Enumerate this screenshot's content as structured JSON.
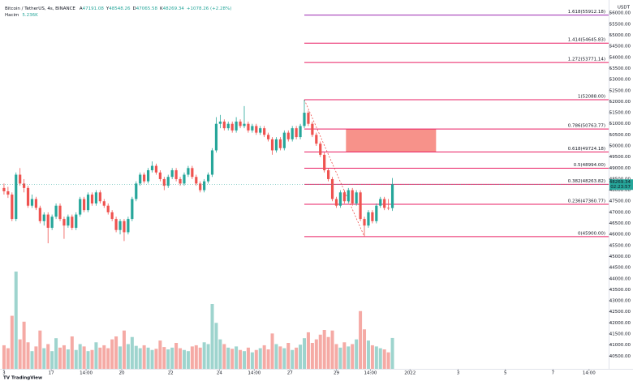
{
  "chart_data": {
    "type": "candlestick",
    "header": {
      "symbol": "Bitcoin / TetherUS, 4s, BINANCE",
      "ohlc_prefixes": [
        "A",
        "Y",
        "D",
        "K"
      ],
      "change": "+1078.26 (+2.28%)",
      "volume_name": "Hacim",
      "volume_value": "5.236K",
      "countdown": "02:23:57",
      "currency": "USDT",
      "brand": "TradingView"
    },
    "colors": {
      "up": "#26a69a",
      "down": "#ef5350",
      "up_volume": "#9ed4ce",
      "down_volume": "#f5aaa5",
      "zone": "#f7928a",
      "trend": "#ef5350"
    },
    "candles": [
      [
        48100,
        48300,
        47800,
        47950
      ],
      [
        47950,
        48150,
        47650,
        47800
      ],
      [
        47800,
        47900,
        46600,
        46700
      ],
      [
        46700,
        48800,
        46600,
        48700
      ],
      [
        48700,
        49000,
        48200,
        48300
      ],
      [
        48300,
        48500,
        47900,
        48100
      ],
      [
        48100,
        48200,
        47200,
        47300
      ],
      [
        47300,
        47800,
        47200,
        47600
      ],
      [
        47600,
        47700,
        47100,
        47200
      ],
      [
        47200,
        47300,
        46500,
        46600
      ],
      [
        46600,
        47000,
        46400,
        46900
      ],
      [
        46900,
        47000,
        45600,
        46300
      ],
      [
        46300,
        46900,
        46200,
        46800
      ],
      [
        46800,
        47400,
        46700,
        47300
      ],
      [
        47300,
        47400,
        46600,
        46700
      ],
      [
        46700,
        46800,
        45800,
        46400
      ],
      [
        46400,
        46900,
        46300,
        46800
      ],
      [
        46800,
        46900,
        46200,
        46300
      ],
      [
        46300,
        47000,
        46200,
        46900
      ],
      [
        46900,
        47700,
        46800,
        47600
      ],
      [
        47600,
        47700,
        47000,
        47100
      ],
      [
        47100,
        47900,
        47000,
        47800
      ],
      [
        47800,
        47900,
        47300,
        47400
      ],
      [
        47400,
        48000,
        47300,
        47900
      ],
      [
        47900,
        48000,
        47400,
        47500
      ],
      [
        47500,
        47600,
        47200,
        47300
      ],
      [
        47300,
        47400,
        46900,
        47000
      ],
      [
        47000,
        47100,
        46600,
        46700
      ],
      [
        46700,
        46800,
        46100,
        46200
      ],
      [
        46200,
        46700,
        46000,
        46600
      ],
      [
        46600,
        46700,
        45700,
        46100
      ],
      [
        46100,
        46800,
        46000,
        46700
      ],
      [
        46700,
        47700,
        46600,
        47600
      ],
      [
        47600,
        48400,
        47500,
        48300
      ],
      [
        48300,
        48800,
        48200,
        48700
      ],
      [
        48700,
        48800,
        48300,
        48400
      ],
      [
        48400,
        49000,
        48300,
        48900
      ],
      [
        48900,
        49300,
        48800,
        49100
      ],
      [
        49100,
        49200,
        48700,
        48800
      ],
      [
        48800,
        48900,
        48400,
        48500
      ],
      [
        48500,
        48600,
        48000,
        48200
      ],
      [
        48200,
        48700,
        48100,
        48600
      ],
      [
        48600,
        49000,
        48500,
        48900
      ],
      [
        48900,
        49000,
        48400,
        48500
      ],
      [
        48500,
        48600,
        48200,
        48300
      ],
      [
        48300,
        48800,
        48200,
        48700
      ],
      [
        48700,
        49100,
        48600,
        49000
      ],
      [
        49000,
        49100,
        48500,
        48600
      ],
      [
        48600,
        48700,
        48200,
        48300
      ],
      [
        48300,
        48400,
        47900,
        48000
      ],
      [
        48000,
        48500,
        47900,
        48400
      ],
      [
        48400,
        48800,
        48300,
        48700
      ],
      [
        48700,
        49900,
        48600,
        49800
      ],
      [
        49800,
        51300,
        49700,
        51000
      ],
      [
        51000,
        51400,
        50800,
        51100
      ],
      [
        51100,
        51200,
        50700,
        50800
      ],
      [
        50800,
        51100,
        50700,
        51000
      ],
      [
        51000,
        51100,
        50600,
        50700
      ],
      [
        50700,
        51300,
        50600,
        51100
      ],
      [
        51100,
        51200,
        50800,
        50900
      ],
      [
        50900,
        51800,
        50800,
        51000
      ],
      [
        51000,
        51100,
        50600,
        50700
      ],
      [
        50700,
        51000,
        50600,
        50900
      ],
      [
        50900,
        51000,
        50500,
        50600
      ],
      [
        50600,
        50900,
        50500,
        50800
      ],
      [
        50800,
        50900,
        50400,
        50500
      ],
      [
        50500,
        50600,
        50200,
        50300
      ],
      [
        50300,
        50400,
        49600,
        49800
      ],
      [
        49800,
        50400,
        49700,
        50300
      ],
      [
        50300,
        50400,
        49800,
        49900
      ],
      [
        49900,
        50700,
        49800,
        50600
      ],
      [
        50600,
        50700,
        50200,
        50300
      ],
      [
        50300,
        50900,
        50200,
        50800
      ],
      [
        50800,
        50900,
        50300,
        50400
      ],
      [
        50400,
        51000,
        50300,
        50900
      ],
      [
        50900,
        52088,
        50800,
        51500
      ],
      [
        51500,
        51600,
        50900,
        51000
      ],
      [
        51000,
        51100,
        50400,
        50500
      ],
      [
        50500,
        50600,
        50000,
        50100
      ],
      [
        50100,
        50200,
        49500,
        49600
      ],
      [
        49600,
        49700,
        48800,
        48900
      ],
      [
        48900,
        49000,
        48400,
        48500
      ],
      [
        48500,
        48600,
        47500,
        47600
      ],
      [
        47600,
        47700,
        47200,
        47300
      ],
      [
        47300,
        48000,
        47200,
        47900
      ],
      [
        47900,
        48000,
        47400,
        47500
      ],
      [
        47500,
        48100,
        47400,
        48000
      ],
      [
        48000,
        48100,
        47300,
        47400
      ],
      [
        47400,
        48000,
        47300,
        47900
      ],
      [
        47900,
        48000,
        46600,
        46700
      ],
      [
        46700,
        46800,
        45900,
        46400
      ],
      [
        46400,
        47100,
        46300,
        47000
      ],
      [
        47000,
        47100,
        46500,
        46600
      ],
      [
        46600,
        47400,
        46500,
        47300
      ],
      [
        47300,
        47700,
        47200,
        47600
      ],
      [
        47600,
        47700,
        47100,
        47200
      ],
      [
        47200,
        47600,
        47100,
        47191.08
      ],
      [
        47191.08,
        48548.26,
        47065.58,
        48269.34
      ]
    ],
    "volumes": [
      4000,
      3500,
      9000,
      16500,
      5000,
      8000,
      4500,
      3000,
      3800,
      6500,
      3500,
      4200,
      3000,
      5200,
      3600,
      4000,
      3300,
      5500,
      3200,
      4200,
      3800,
      3000,
      3200,
      4500,
      3600,
      4000,
      3500,
      5000,
      5500,
      3800,
      6500,
      4200,
      5400,
      3900,
      3500,
      4000,
      3600,
      3200,
      3400,
      4800,
      3700,
      3300,
      3600,
      4400,
      3500,
      3200,
      3000,
      3800,
      4000,
      3600,
      4500,
      4200,
      11000,
      7800,
      5000,
      4200,
      3600,
      3400,
      3800,
      3200,
      3000,
      3600,
      2800,
      3200,
      3500,
      4000,
      3300,
      6000,
      4200,
      3800,
      3500,
      4400,
      3200,
      3600,
      4100,
      5200,
      6200,
      4400,
      5000,
      5800,
      6600,
      5400,
      6500,
      4200,
      3600,
      4500,
      3800,
      4200,
      5000,
      9800,
      6700,
      4800,
      4000,
      3800,
      3500,
      3300,
      2800,
      5236
    ],
    "fib_levels": [
      {
        "label": "1.618(55912.18)",
        "value": 55912.18,
        "color": "#9c27b0"
      },
      {
        "label": "1.414(54645.83)",
        "value": 54645.83,
        "color": "#e91e63"
      },
      {
        "label": "1.272(53771.14)",
        "value": 53771.14,
        "color": "#e91e63"
      },
      {
        "label": "1(52088.00)",
        "value": 52088.0,
        "color": "#e91e63"
      },
      {
        "label": "0.786(50763.77)",
        "value": 50763.77,
        "color": "#e91e63"
      },
      {
        "label": "0.618(49724.18)",
        "value": 49724.18,
        "color": "#e91e63"
      },
      {
        "label": "0.5(48994.00)",
        "value": 48994.0,
        "color": "#e91e63"
      },
      {
        "label": "0.382(48263.82)",
        "value": 48263.82,
        "color": "#e91e63"
      },
      {
        "label": "0.236(47360.77)",
        "value": 47360.77,
        "color": "#e91e63"
      },
      {
        "label": "0(45900.00)",
        "value": 45900.0,
        "color": "#e91e63"
      }
    ],
    "zone": {
      "x": [
        85.4,
        107.9
      ],
      "y": [
        49724.18,
        50763.77
      ]
    },
    "xlim": [
      -1,
      151
    ],
    "xticks": [
      {
        "value": 0,
        "label": "3"
      },
      {
        "value": 11.8,
        "label": "17"
      },
      {
        "value": 20.5,
        "label": "14:00"
      },
      {
        "value": 29.4,
        "label": "20"
      },
      {
        "value": 41.6,
        "label": "22"
      },
      {
        "value": 53.8,
        "label": "24"
      },
      {
        "value": 62.5,
        "label": "14:00"
      },
      {
        "value": 71.4,
        "label": "27"
      },
      {
        "value": 83,
        "label": "29"
      },
      {
        "value": 91.5,
        "label": "14:00"
      },
      {
        "value": 101.4,
        "label": "2022"
      },
      {
        "value": 113.4,
        "label": "3"
      },
      {
        "value": 125.2,
        "label": "5"
      },
      {
        "value": 137.1,
        "label": "7"
      },
      {
        "value": 146.1,
        "label": "14:00"
      }
    ],
    "ylim": [
      39925,
      56595
    ],
    "yticks": [
      {
        "value": 40500,
        "label": "40500.00"
      },
      {
        "value": 41000,
        "label": "41000.00"
      },
      {
        "value": 41500,
        "label": "41500.00"
      },
      {
        "value": 42000,
        "label": "42000.00"
      },
      {
        "value": 42500,
        "label": "42500.00"
      },
      {
        "value": 43000,
        "label": "43000.00"
      },
      {
        "value": 43500,
        "label": "43500.00"
      },
      {
        "value": 44000,
        "label": "44000.00"
      },
      {
        "value": 44500,
        "label": "44500.00"
      },
      {
        "value": 45000,
        "label": "45000.00"
      },
      {
        "value": 45500,
        "label": "45500.00"
      },
      {
        "value": 46000,
        "label": "46000.00"
      },
      {
        "value": 46500,
        "label": "46500.00"
      },
      {
        "value": 47000,
        "label": "47000.00"
      },
      {
        "value": 47500,
        "label": "47500.00"
      },
      {
        "value": 48000,
        "label": "48000.00"
      },
      {
        "value": 48500,
        "label": "48500.00"
      },
      {
        "value": 49000,
        "label": "49000.00"
      },
      {
        "value": 49500,
        "label": "49500.00"
      },
      {
        "value": 50000,
        "label": "50000.00"
      },
      {
        "value": 50500,
        "label": "50500.00"
      },
      {
        "value": 51000,
        "label": "51000.00"
      },
      {
        "value": 51500,
        "label": "51500.00"
      },
      {
        "value": 52000,
        "label": "52000.00"
      },
      {
        "value": 52500,
        "label": "52500.00"
      },
      {
        "value": 53000,
        "label": "53000.00"
      },
      {
        "value": 53500,
        "label": "53500.00"
      },
      {
        "value": 54000,
        "label": "54000.00"
      },
      {
        "value": 54500,
        "label": "54500.00"
      },
      {
        "value": 55000,
        "label": "55000.00"
      },
      {
        "value": 55500,
        "label": "55500.00"
      },
      {
        "value": 56000,
        "label": "56000.00"
      }
    ],
    "grid": false
  }
}
